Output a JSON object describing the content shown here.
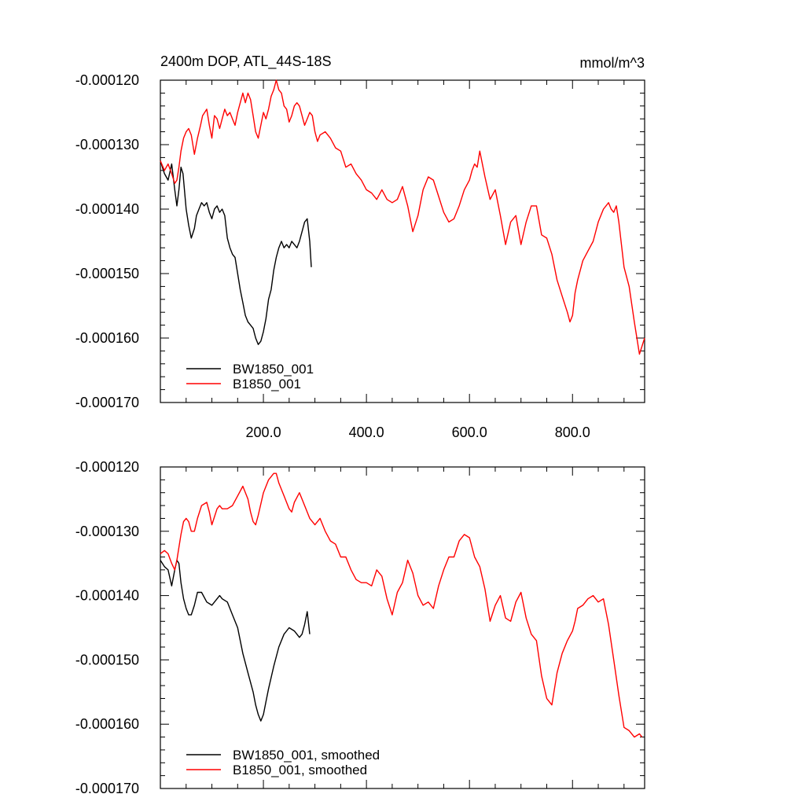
{
  "chart_data": [
    {
      "type": "line",
      "title": "2400m DOP, ATL_44S-18S",
      "units": "mmol/m^3",
      "xlim": [
        0,
        940
      ],
      "ylim": [
        -0.00017,
        -0.00012
      ],
      "x_ticks": [
        200,
        400,
        600,
        800
      ],
      "x_tick_labels": [
        "200.0",
        "400.0",
        "600.0",
        "800.0"
      ],
      "y_ticks": [
        -0.00012,
        -0.00013,
        -0.00014,
        -0.00015,
        -0.00016,
        -0.00017
      ],
      "y_tick_labels": [
        "-0.000120",
        "-0.000130",
        "-0.000140",
        "-0.000150",
        "-0.000160",
        "-0.000170"
      ],
      "legend_position": "bottom-left",
      "series": [
        {
          "name": "BW1850_001",
          "color": "#000000",
          "x": [
            0,
            8,
            15,
            22,
            28,
            32,
            36,
            40,
            44,
            50,
            55,
            60,
            66,
            70,
            75,
            80,
            85,
            90,
            95,
            100,
            105,
            110,
            115,
            120,
            125,
            130,
            135,
            140,
            145,
            150,
            155,
            160,
            165,
            170,
            175,
            180,
            185,
            190,
            195,
            200,
            205,
            210,
            215,
            220,
            225,
            230,
            235,
            240,
            245,
            250,
            255,
            260,
            265,
            270,
            275,
            280,
            285,
            290,
            293
          ],
          "y": [
            -0.0001325,
            -0.0001345,
            -0.0001355,
            -0.000133,
            -0.000137,
            -0.0001395,
            -0.000137,
            -0.0001335,
            -0.0001345,
            -0.00014,
            -0.0001425,
            -0.0001445,
            -0.000143,
            -0.000141,
            -0.00014,
            -0.000139,
            -0.0001395,
            -0.000139,
            -0.0001405,
            -0.0001415,
            -0.00014,
            -0.0001395,
            -0.0001405,
            -0.00014,
            -0.000141,
            -0.0001445,
            -0.000146,
            -0.000147,
            -0.0001475,
            -0.00015,
            -0.0001525,
            -0.0001545,
            -0.0001565,
            -0.0001575,
            -0.000158,
            -0.0001585,
            -0.00016,
            -0.000161,
            -0.0001605,
            -0.000159,
            -0.000157,
            -0.000154,
            -0.0001525,
            -0.0001495,
            -0.0001475,
            -0.000146,
            -0.000145,
            -0.000146,
            -0.0001455,
            -0.000146,
            -0.000145,
            -0.0001455,
            -0.000146,
            -0.000145,
            -0.0001435,
            -0.000142,
            -0.0001415,
            -0.000145,
            -0.000149
          ]
        },
        {
          "name": "B1850_001",
          "color": "#ff0000",
          "x": [
            0,
            8,
            15,
            22,
            28,
            32,
            36,
            40,
            45,
            50,
            55,
            60,
            66,
            72,
            78,
            82,
            86,
            90,
            95,
            100,
            105,
            110,
            115,
            120,
            125,
            130,
            135,
            140,
            145,
            150,
            155,
            160,
            165,
            170,
            175,
            180,
            185,
            190,
            195,
            200,
            205,
            210,
            215,
            220,
            225,
            230,
            235,
            240,
            245,
            250,
            255,
            260,
            265,
            270,
            275,
            280,
            285,
            290,
            295,
            300,
            305,
            310,
            320,
            330,
            340,
            350,
            360,
            370,
            380,
            390,
            400,
            410,
            420,
            430,
            440,
            450,
            460,
            470,
            480,
            490,
            500,
            510,
            520,
            530,
            540,
            550,
            560,
            570,
            580,
            590,
            600,
            605,
            610,
            615,
            620,
            630,
            640,
            650,
            660,
            670,
            680,
            690,
            700,
            710,
            720,
            730,
            740,
            750,
            760,
            770,
            780,
            790,
            795,
            800,
            805,
            810,
            820,
            830,
            840,
            850,
            860,
            870,
            875,
            880,
            885,
            890,
            895,
            900,
            910,
            920,
            930,
            940
          ],
          "y": [
            -0.0001325,
            -0.000134,
            -0.000133,
            -0.0001345,
            -0.000136,
            -0.0001355,
            -0.0001335,
            -0.000131,
            -0.000129,
            -0.000128,
            -0.0001275,
            -0.0001285,
            -0.0001315,
            -0.000129,
            -0.000127,
            -0.0001255,
            -0.000125,
            -0.0001245,
            -0.000127,
            -0.000129,
            -0.0001255,
            -0.000126,
            -0.0001275,
            -0.000126,
            -0.0001245,
            -0.0001255,
            -0.000125,
            -0.000126,
            -0.000127,
            -0.000125,
            -0.0001235,
            -0.000122,
            -0.0001235,
            -0.000122,
            -0.000123,
            -0.0001255,
            -0.000128,
            -0.000129,
            -0.000127,
            -0.000125,
            -0.000126,
            -0.0001245,
            -0.0001225,
            -0.0001215,
            -0.00012,
            -0.0001215,
            -0.000122,
            -0.000124,
            -0.0001245,
            -0.0001265,
            -0.0001255,
            -0.000124,
            -0.0001235,
            -0.000124,
            -0.0001255,
            -0.000127,
            -0.000126,
            -0.000125,
            -0.0001255,
            -0.000128,
            -0.0001295,
            -0.0001285,
            -0.000128,
            -0.000129,
            -0.0001305,
            -0.000131,
            -0.0001335,
            -0.000133,
            -0.0001345,
            -0.0001355,
            -0.000137,
            -0.0001375,
            -0.0001385,
            -0.000137,
            -0.0001385,
            -0.000139,
            -0.0001385,
            -0.0001365,
            -0.0001395,
            -0.0001435,
            -0.000141,
            -0.000137,
            -0.000135,
            -0.0001355,
            -0.000138,
            -0.0001405,
            -0.000142,
            -0.0001415,
            -0.0001395,
            -0.000137,
            -0.0001355,
            -0.000134,
            -0.000133,
            -0.0001335,
            -0.000131,
            -0.000135,
            -0.0001385,
            -0.000137,
            -0.000141,
            -0.0001455,
            -0.000142,
            -0.000141,
            -0.0001455,
            -0.000142,
            -0.0001395,
            -0.0001395,
            -0.000144,
            -0.0001445,
            -0.000147,
            -0.000151,
            -0.0001535,
            -0.000156,
            -0.0001575,
            -0.0001565,
            -0.000153,
            -0.000151,
            -0.000148,
            -0.0001465,
            -0.000145,
            -0.000142,
            -0.00014,
            -0.000139,
            -0.00014,
            -0.0001405,
            -0.0001395,
            -0.000142,
            -0.0001455,
            -0.000149,
            -0.000152,
            -0.0001575,
            -0.0001625,
            -0.00016
          ]
        }
      ]
    },
    {
      "type": "line",
      "xlim": [
        0,
        940
      ],
      "ylim": [
        -0.00017,
        -0.00012
      ],
      "x_ticks": [
        200,
        400,
        600,
        800
      ],
      "y_ticks": [
        -0.00012,
        -0.00013,
        -0.00014,
        -0.00015,
        -0.00016,
        -0.00017
      ],
      "y_tick_labels": [
        "-0.000120",
        "-0.000130",
        "-0.000140",
        "-0.000150",
        "-0.000160",
        "-0.000170"
      ],
      "legend_position": "bottom-left",
      "series": [
        {
          "name": "BW1850_001, smoothed",
          "color": "#000000",
          "x": [
            0,
            8,
            15,
            22,
            28,
            32,
            36,
            40,
            45,
            50,
            55,
            60,
            66,
            72,
            80,
            90,
            100,
            110,
            115,
            120,
            130,
            140,
            150,
            160,
            170,
            180,
            185,
            190,
            195,
            200,
            205,
            210,
            220,
            230,
            240,
            250,
            260,
            270,
            275,
            280,
            285,
            290
          ],
          "y": [
            -0.0001345,
            -0.0001355,
            -0.000136,
            -0.0001385,
            -0.000136,
            -0.0001345,
            -0.000135,
            -0.000138,
            -0.0001405,
            -0.000142,
            -0.000143,
            -0.000143,
            -0.0001415,
            -0.0001395,
            -0.0001395,
            -0.000141,
            -0.0001415,
            -0.0001405,
            -0.00014,
            -0.0001405,
            -0.000141,
            -0.000143,
            -0.000145,
            -0.000149,
            -0.000152,
            -0.000155,
            -0.000157,
            -0.0001585,
            -0.0001595,
            -0.0001585,
            -0.0001565,
            -0.0001545,
            -0.000151,
            -0.000148,
            -0.000146,
            -0.000145,
            -0.0001455,
            -0.0001465,
            -0.000146,
            -0.0001445,
            -0.0001425,
            -0.000146
          ]
        },
        {
          "name": "B1850_001, smoothed",
          "color": "#ff0000",
          "x": [
            0,
            8,
            15,
            22,
            28,
            32,
            36,
            40,
            45,
            50,
            55,
            60,
            66,
            72,
            80,
            90,
            95,
            100,
            110,
            115,
            120,
            130,
            140,
            150,
            160,
            170,
            175,
            180,
            185,
            190,
            200,
            210,
            220,
            225,
            230,
            240,
            250,
            255,
            260,
            270,
            280,
            290,
            300,
            310,
            320,
            330,
            340,
            350,
            360,
            370,
            380,
            390,
            400,
            410,
            420,
            430,
            440,
            450,
            460,
            470,
            480,
            490,
            500,
            510,
            520,
            530,
            540,
            550,
            560,
            570,
            580,
            590,
            600,
            610,
            620,
            630,
            640,
            650,
            660,
            670,
            680,
            690,
            700,
            710,
            720,
            730,
            740,
            750,
            760,
            770,
            780,
            790,
            800,
            805,
            810,
            820,
            830,
            840,
            850,
            860,
            870,
            880,
            890,
            900,
            910,
            920,
            930,
            935
          ],
          "y": [
            -0.0001335,
            -0.000133,
            -0.0001335,
            -0.000135,
            -0.000136,
            -0.0001345,
            -0.0001325,
            -0.0001305,
            -0.0001285,
            -0.000128,
            -0.0001285,
            -0.00013,
            -0.00013,
            -0.000128,
            -0.000126,
            -0.0001255,
            -0.000127,
            -0.000129,
            -0.0001265,
            -0.000126,
            -0.0001265,
            -0.0001265,
            -0.000126,
            -0.0001245,
            -0.000123,
            -0.000125,
            -0.000127,
            -0.0001285,
            -0.000129,
            -0.0001275,
            -0.000124,
            -0.000122,
            -0.000121,
            -0.000121,
            -0.0001225,
            -0.0001245,
            -0.0001265,
            -0.000127,
            -0.0001255,
            -0.000124,
            -0.000126,
            -0.000128,
            -0.000129,
            -0.000128,
            -0.00013,
            -0.0001315,
            -0.000132,
            -0.000134,
            -0.000134,
            -0.000136,
            -0.0001375,
            -0.000138,
            -0.000138,
            -0.0001385,
            -0.000136,
            -0.000137,
            -0.0001405,
            -0.000143,
            -0.0001395,
            -0.000138,
            -0.0001345,
            -0.0001365,
            -0.00014,
            -0.0001415,
            -0.000141,
            -0.000142,
            -0.0001385,
            -0.000136,
            -0.000134,
            -0.000134,
            -0.0001315,
            -0.0001305,
            -0.000131,
            -0.000134,
            -0.0001355,
            -0.000139,
            -0.000144,
            -0.0001415,
            -0.00014,
            -0.0001435,
            -0.000144,
            -0.000141,
            -0.0001395,
            -0.0001435,
            -0.000146,
            -0.000147,
            -0.0001525,
            -0.000156,
            -0.000157,
            -0.000152,
            -0.000149,
            -0.000147,
            -0.0001455,
            -0.000144,
            -0.000142,
            -0.0001415,
            -0.0001405,
            -0.00014,
            -0.000141,
            -0.0001405,
            -0.0001445,
            -0.00015,
            -0.0001555,
            -0.0001605,
            -0.000161,
            -0.000162,
            -0.0001615,
            -0.000162
          ]
        }
      ]
    }
  ]
}
